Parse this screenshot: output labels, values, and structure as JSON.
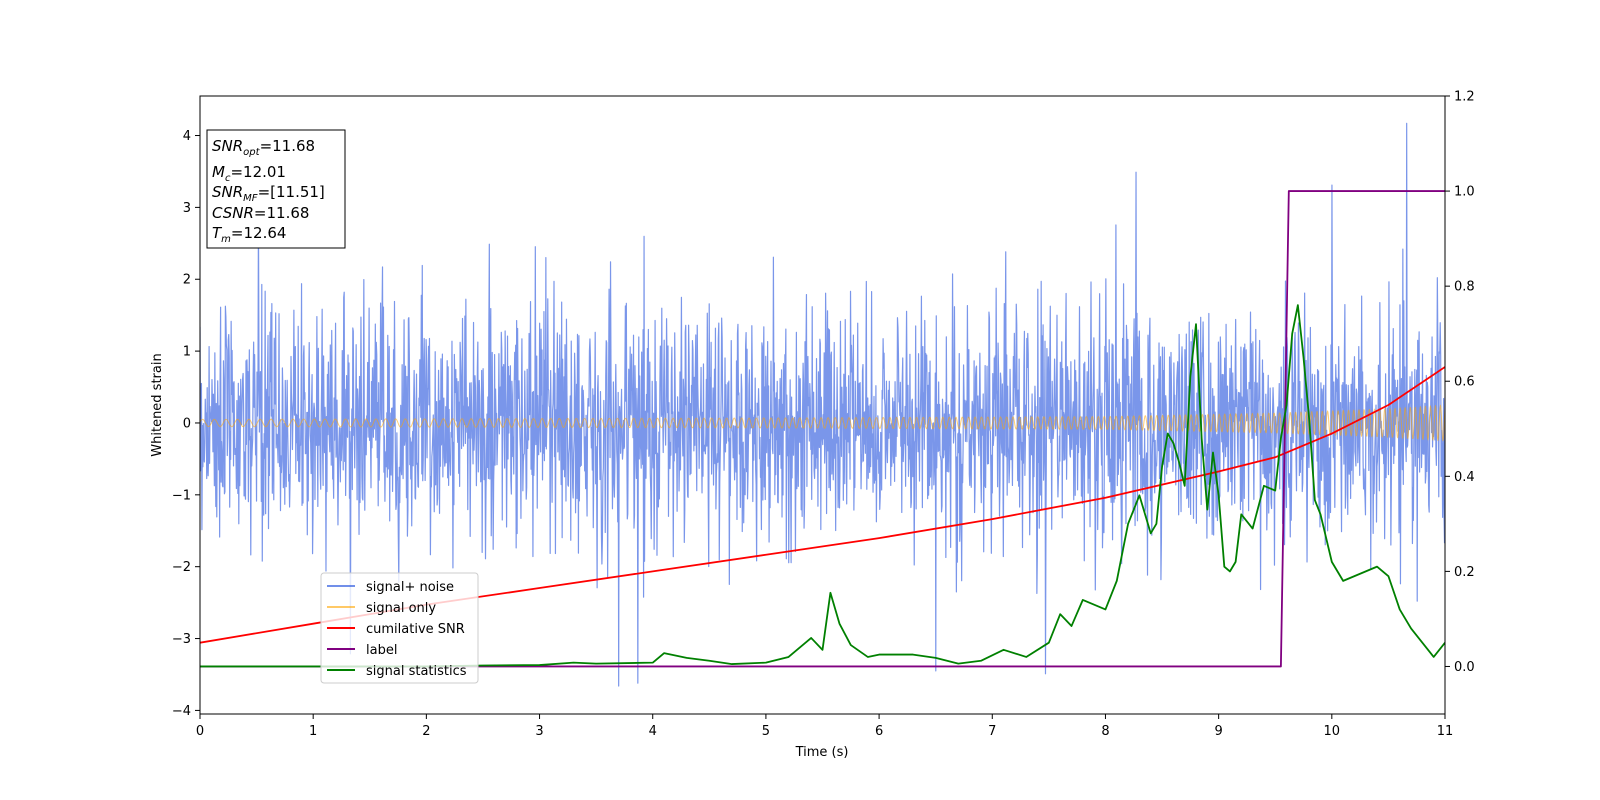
{
  "chart_data": {
    "type": "line",
    "xlabel": "Time (s)",
    "ylabel": "Whitened strain",
    "xlim": [
      0,
      11
    ],
    "ylim_left": [
      -4.05,
      4.55
    ],
    "ylim_right": [
      -0.1,
      1.2
    ],
    "x_ticks": [
      0,
      1,
      2,
      3,
      4,
      5,
      6,
      7,
      8,
      9,
      10,
      11
    ],
    "x_tick_labels": [
      "0",
      "1",
      "2",
      "3",
      "4",
      "5",
      "6",
      "7",
      "8",
      "9",
      "10",
      "11"
    ],
    "y_left_ticks": [
      -4,
      -3,
      -2,
      -1,
      0,
      1,
      2,
      3,
      4
    ],
    "y_left_tick_labels": [
      "−4",
      "−3",
      "−2",
      "−1",
      "0",
      "1",
      "2",
      "3",
      "4"
    ],
    "y_right_ticks": [
      0.0,
      0.2,
      0.4,
      0.6,
      0.8,
      1.0,
      1.2
    ],
    "y_right_tick_labels": [
      "0.0",
      "0.2",
      "0.4",
      "0.6",
      "0.8",
      "1.0",
      "1.2"
    ],
    "grid": false,
    "legend_position": "bottom-left",
    "annotation_lines": [
      {
        "main": "SNR",
        "sub": "opt",
        "value": "=11.68"
      },
      {
        "main": "M",
        "sub": "c",
        "value": "=12.01"
      },
      {
        "main": "SNR",
        "sub": "MF",
        "value": "=[11.51]"
      },
      {
        "main": "CSNR",
        "sub": "",
        "value": "=11.68"
      },
      {
        "main": "T",
        "sub": "m",
        "value": "=12.64"
      }
    ],
    "series": [
      {
        "name": "signal+ noise",
        "axis": "left",
        "color": "#4169e1",
        "kind": "noise",
        "noise_std": 0.82,
        "noise_samples": 2600,
        "peaks": [
          [
            10.66,
            4.17
          ],
          [
            8.27,
            3.49
          ],
          [
            7.47,
            -3.49
          ],
          [
            3.7,
            -3.66
          ],
          [
            3.87,
            -3.62
          ],
          [
            6.5,
            -3.45
          ],
          [
            10.0,
            3.31
          ]
        ]
      },
      {
        "name": "signal only",
        "axis": "left",
        "color": "#ffa500",
        "kind": "chirp",
        "amplitude": [
          [
            0,
            0.05
          ],
          [
            5,
            0.07
          ],
          [
            8,
            0.09
          ],
          [
            9.5,
            0.14
          ],
          [
            10.5,
            0.2
          ],
          [
            11,
            0.25
          ]
        ]
      },
      {
        "name": "cumilative SNR",
        "axis": "right",
        "color": "#ff0000",
        "x": [
          0,
          1,
          2,
          3,
          4,
          5,
          6,
          7,
          8,
          9,
          9.5,
          10,
          10.5,
          11
        ],
        "y": [
          0.05,
          0.09,
          0.13,
          0.165,
          0.2,
          0.235,
          0.27,
          0.31,
          0.355,
          0.41,
          0.44,
          0.49,
          0.55,
          0.63
        ]
      },
      {
        "name": "label",
        "axis": "right",
        "color": "#800080",
        "x": [
          0,
          9.55,
          9.62,
          11
        ],
        "y": [
          0,
          0,
          1,
          1
        ]
      },
      {
        "name": "signal statistics",
        "axis": "right",
        "color": "#008000",
        "x": [
          0,
          1,
          2,
          2.5,
          3,
          3.3,
          3.5,
          4,
          4.1,
          4.3,
          4.5,
          4.7,
          5,
          5.2,
          5.4,
          5.5,
          5.57,
          5.65,
          5.75,
          5.9,
          6.0,
          6.3,
          6.5,
          6.7,
          6.9,
          7.1,
          7.3,
          7.5,
          7.6,
          7.7,
          7.8,
          7.9,
          8.0,
          8.1,
          8.2,
          8.3,
          8.35,
          8.4,
          8.45,
          8.5,
          8.55,
          8.6,
          8.65,
          8.7,
          8.75,
          8.8,
          8.85,
          8.9,
          8.95,
          9.0,
          9.05,
          9.1,
          9.15,
          9.2,
          9.3,
          9.4,
          9.5,
          9.55,
          9.6,
          9.65,
          9.7,
          9.75,
          9.8,
          9.85,
          9.9,
          10.0,
          10.1,
          10.2,
          10.3,
          10.4,
          10.5,
          10.6,
          10.7,
          10.8,
          10.9,
          11.0
        ],
        "y": [
          0.0,
          0.0,
          0.0,
          0.002,
          0.003,
          0.008,
          0.006,
          0.008,
          0.028,
          0.018,
          0.012,
          0.005,
          0.008,
          0.02,
          0.06,
          0.035,
          0.155,
          0.09,
          0.045,
          0.02,
          0.025,
          0.025,
          0.018,
          0.006,
          0.012,
          0.035,
          0.02,
          0.05,
          0.11,
          0.085,
          0.14,
          0.13,
          0.12,
          0.18,
          0.3,
          0.36,
          0.32,
          0.28,
          0.3,
          0.42,
          0.49,
          0.47,
          0.43,
          0.38,
          0.61,
          0.72,
          0.48,
          0.33,
          0.45,
          0.36,
          0.21,
          0.2,
          0.22,
          0.32,
          0.29,
          0.38,
          0.37,
          0.48,
          0.55,
          0.7,
          0.76,
          0.65,
          0.52,
          0.35,
          0.32,
          0.22,
          0.18,
          0.19,
          0.2,
          0.21,
          0.19,
          0.12,
          0.08,
          0.05,
          0.02,
          0.05
        ]
      }
    ]
  }
}
